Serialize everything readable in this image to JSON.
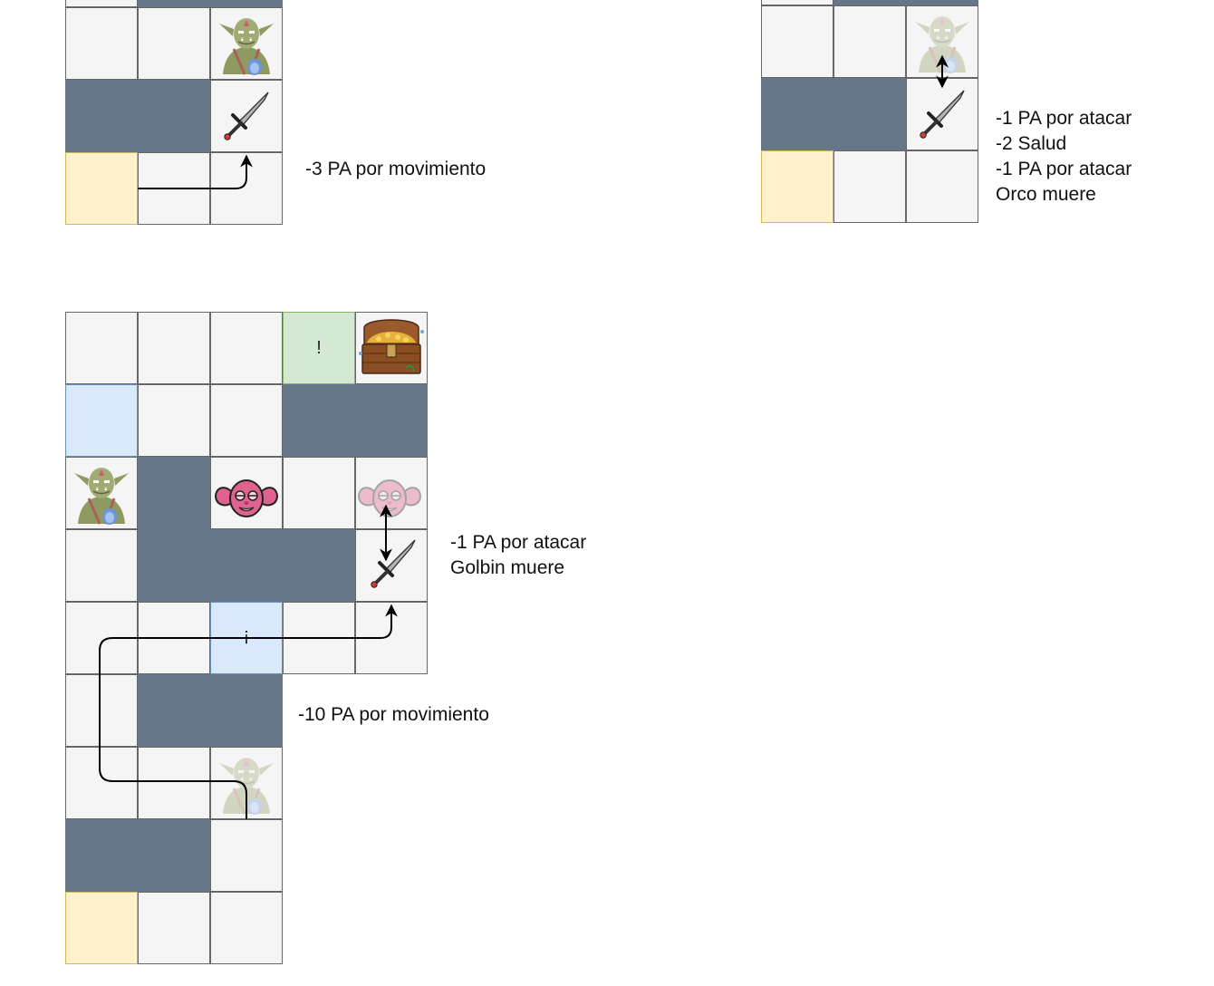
{
  "colors": {
    "floor": "#f5f5f5",
    "wall": "#647687",
    "start": "#fff2cc",
    "event_blue": "#dae8fc",
    "goal_green": "#d5e8d4",
    "grid_line": "#666666"
  },
  "icons": {
    "orc": "orc-icon",
    "goblin": "goblin-icon",
    "sword": "sword-icon",
    "treasure": "treasure-chest-icon"
  },
  "diagram1": {
    "note": "-3 PA por movimiento"
  },
  "diagram2": {
    "notes": [
      "-1 PA por atacar",
      "-2 Salud",
      "-1 PA por atacar",
      "Orco muere"
    ]
  },
  "diagram3": {
    "notes_attack": [
      "-1 PA por atacar",
      "Golbin muere"
    ],
    "note_move": "-10 PA por movimiento",
    "goal_mark": "!",
    "event_mark": "¡"
  }
}
